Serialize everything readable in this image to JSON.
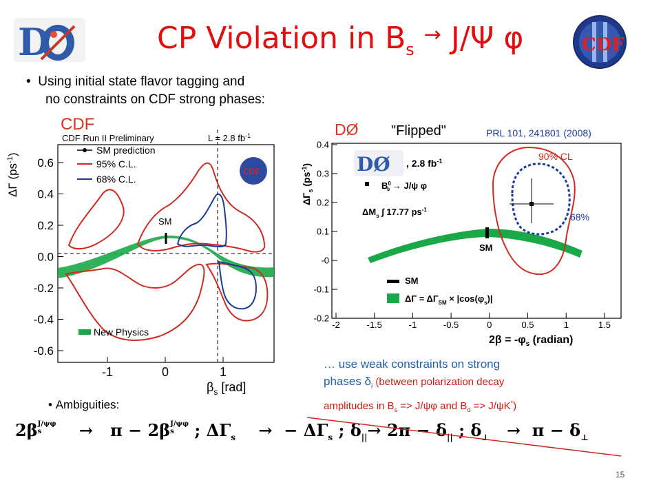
{
  "slide": {
    "title_prefix": "CP Violation in B",
    "title_sub": "s",
    "title_arrow": "→",
    "title_suffix": " J/Ψ φ",
    "page_number": "15"
  },
  "bullets": {
    "line1": "Using initial state flavor tagging and",
    "line2": "no constraints on CDF strong phases:",
    "ambiguities": "Ambiguities:"
  },
  "cdf_plot": {
    "label": "CDF",
    "header_left": "CDF Run II Preliminary",
    "header_right": "L = 2.8 fb",
    "header_right_sup": "-1",
    "legend_sm": "SM prediction",
    "legend_95": "95% C.L.",
    "legend_68": "68% C.L.",
    "sm_label": "SM",
    "new_physics": "New Physics",
    "ylabel": "ΔΓ (ps",
    "ylabel_sup": "-1",
    "ylabel_end": ")",
    "xlabel_main": "β",
    "xlabel_sub": "s",
    "xlabel_end": " [rad]",
    "yticks": [
      "0.6",
      "0.4",
      "0.2",
      "0.0",
      "-0.2",
      "-0.4",
      "-0.6"
    ],
    "xticks": [
      "-1",
      "0",
      "1"
    ]
  },
  "d0_plot": {
    "label": "DØ",
    "flipped": "\"Flipped\"",
    "reference": "PRL 101, 241801 (2008)",
    "lumi": ", 2.8 fb",
    "lumi_sup": "-1",
    "decay": "B",
    "decay_sup": "0",
    "decay_sub": "s",
    "decay_end": " → J/ψ  φ",
    "dm": "ΔM",
    "dm_sub": "s",
    "dm_end": " ∫  17.77 ps",
    "dm_sup": "-1",
    "cl90": "90% CL",
    "cl68": "68%",
    "sm_label": "SM",
    "legend_sm": "SM",
    "legend_band": "ΔΓ = ΔΓ",
    "legend_band_sub": "SM",
    "legend_band_end": " × |cos(φ",
    "legend_band_sub2": "s",
    "legend_band_end2": ")|",
    "ylabel": "ΔΓ",
    "ylabel_sub": "s",
    "ylabel_end": " (ps",
    "ylabel_sup": "-1",
    "ylabel_close": ")",
    "xlabel_pre": "2β  = -φ",
    "xlabel_sub": "s",
    "xlabel_end": " (radian)",
    "yticks": [
      "0.4",
      "0.3",
      "0.2",
      "0.1",
      "-0",
      "-0.1",
      "-0.2"
    ],
    "xticks": [
      "-2",
      "-1.5",
      "-1",
      "-0.5",
      "0",
      "0.5",
      "1",
      "1.5"
    ]
  },
  "note": {
    "line1": "… use weak constraints on strong",
    "line2_a": "phases ",
    "line2_b": "δ",
    "line2_sub": "i",
    "line2_c": " (between polarization decay",
    "line3": "amplitudes in B",
    "line3_sub": "s",
    "line3_b": " => J/ψφ  and B",
    "line3_sub2": "d",
    "line3_c": " => J/ψK",
    "line3_sup": "*",
    "line3_d": ")"
  },
  "equation": {
    "part1": "2β",
    "part1_sup": "J/ψφ",
    "part1_sub": "s",
    "arrow1": "→",
    "part2": "π − 2β",
    "part2_sup": "J/ψφ",
    "part2_sub": "s",
    "part3": "; ΔΓ",
    "part3_sub": "s",
    "arrow2": "→",
    "part4": "− ΔΓ",
    "part4_sub": "s",
    "part5": "; δ",
    "part5_sub": "||",
    "arrow3": "→",
    "part6": "2π − δ",
    "part6_sub": "||",
    "part7": "; δ",
    "part7_sub": "⊥",
    "arrow4": "→",
    "part8": "π − δ",
    "part8_sub": "⊥"
  },
  "colors": {
    "title": "#e01010",
    "red_contour": "#d02a20",
    "blue_contour": "#1a3a9a",
    "green_band": "#1aa848"
  }
}
